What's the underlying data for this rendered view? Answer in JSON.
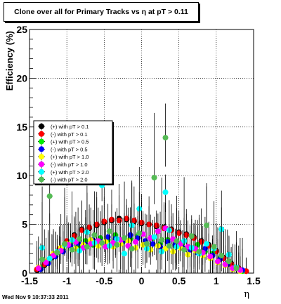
{
  "chart_data": {
    "type": "scatter",
    "title": "Clone  over all for Primary Tracks vs    η at pT > 0.11",
    "xlabel": "η",
    "ylabel": "Efficiency (%)",
    "xlim": [
      -1.5,
      1.5
    ],
    "ylim": [
      0,
      25
    ],
    "xticks": [
      -1.5,
      -1,
      -0.5,
      0,
      0.5,
      1,
      1.5
    ],
    "yticks": [
      0,
      5,
      10,
      15,
      20,
      25
    ],
    "grid": true,
    "legend_position": "left",
    "footer": "Wed Nov  9 10:37:33 2011",
    "series": [
      {
        "name": "(+) with pT > 0.1",
        "color": "#000000",
        "x": [
          -1.4,
          -1.3,
          -1.2,
          -1.1,
          -1.0,
          -0.9,
          -0.8,
          -0.7,
          -0.6,
          -0.5,
          -0.4,
          -0.3,
          -0.2,
          -0.1,
          0.0,
          0.1,
          0.2,
          0.3,
          0.4,
          0.5,
          0.6,
          0.7,
          0.8,
          0.9,
          1.0,
          1.1,
          1.2,
          1.3,
          1.4
        ],
        "y": [
          0.3,
          0.8,
          1.6,
          2.4,
          3.2,
          3.9,
          4.5,
          4.6,
          4.9,
          5.2,
          5.4,
          5.6,
          5.5,
          5.3,
          5.1,
          5.0,
          4.8,
          4.7,
          4.5,
          4.2,
          4.0,
          3.7,
          3.3,
          2.9,
          2.3,
          1.6,
          1.0,
          0.5,
          0.2
        ]
      },
      {
        "name": "(-) with pT > 0.1",
        "color": "#ff0000",
        "x": [
          -1.4,
          -1.3,
          -1.2,
          -1.1,
          -1.0,
          -0.9,
          -0.8,
          -0.7,
          -0.6,
          -0.5,
          -0.4,
          -0.3,
          -0.2,
          -0.1,
          0.0,
          0.1,
          0.2,
          0.3,
          0.4,
          0.5,
          0.6,
          0.7,
          0.8,
          0.9,
          1.0,
          1.1,
          1.2,
          1.3,
          1.4
        ],
        "y": [
          0.4,
          0.9,
          1.7,
          2.5,
          3.3,
          3.8,
          4.4,
          4.7,
          5.0,
          5.3,
          5.5,
          5.4,
          5.6,
          5.4,
          5.2,
          5.0,
          4.9,
          4.6,
          4.4,
          4.1,
          3.9,
          3.6,
          3.2,
          2.8,
          2.2,
          1.5,
          0.9,
          0.5,
          0.2
        ]
      },
      {
        "name": "(+) with pT > 0.5",
        "color": "#00ee00",
        "x": [
          -1.35,
          -1.25,
          -1.15,
          -1.05,
          -0.95,
          -0.85,
          -0.75,
          -0.65,
          -0.55,
          -0.45,
          -0.35,
          -0.25,
          -0.15,
          -0.05,
          0.05,
          0.15,
          0.25,
          0.35,
          0.45,
          0.55,
          0.65,
          0.75,
          0.85,
          0.95,
          1.05,
          1.15,
          1.25,
          1.35
        ],
        "y": [
          0.5,
          1.1,
          1.8,
          2.4,
          3.0,
          2.7,
          3.3,
          2.9,
          3.6,
          3.4,
          3.9,
          3.2,
          3.5,
          3.8,
          3.1,
          3.6,
          3.0,
          3.4,
          2.8,
          3.1,
          2.6,
          2.9,
          2.2,
          2.0,
          1.5,
          1.0,
          0.6,
          0.2
        ]
      },
      {
        "name": "(-) with pT > 0.5",
        "color": "#0000ff",
        "x": [
          -1.35,
          -1.25,
          -1.15,
          -1.05,
          -0.95,
          -0.85,
          -0.75,
          -0.65,
          -0.55,
          -0.45,
          -0.35,
          -0.25,
          -0.15,
          -0.05,
          0.05,
          0.15,
          0.25,
          0.35,
          0.45,
          0.55,
          0.65,
          0.75,
          0.85,
          0.95,
          1.05,
          1.15,
          1.25,
          1.35
        ],
        "y": [
          0.4,
          1.0,
          1.7,
          2.2,
          2.8,
          3.1,
          2.9,
          3.4,
          3.2,
          3.7,
          3.5,
          3.3,
          3.9,
          3.6,
          3.3,
          3.0,
          2.7,
          3.2,
          2.9,
          2.6,
          2.4,
          2.1,
          2.5,
          1.8,
          1.4,
          0.9,
          0.5,
          0.3
        ]
      },
      {
        "name": "(+) with pT > 1.0",
        "color": "#ffff00",
        "x": [
          -1.38,
          -1.28,
          -1.18,
          -1.08,
          -0.98,
          -0.88,
          -0.78,
          -0.68,
          -0.58,
          -0.48,
          -0.38,
          -0.28,
          -0.18,
          -0.08,
          0.02,
          0.12,
          0.22,
          0.32,
          0.42,
          0.52,
          0.62,
          0.72,
          0.82,
          0.92,
          1.02,
          1.12,
          1.22,
          1.32
        ],
        "y": [
          0.6,
          1.2,
          2.0,
          2.6,
          3.0,
          2.5,
          2.9,
          3.4,
          2.8,
          3.2,
          2.7,
          3.0,
          3.3,
          2.6,
          2.9,
          2.4,
          2.8,
          2.5,
          2.2,
          2.6,
          1.9,
          2.3,
          1.8,
          1.5,
          1.1,
          0.8,
          0.4,
          0.2
        ]
      },
      {
        "name": "(-) with pT > 1.0",
        "color": "#ff00ff",
        "x": [
          -1.38,
          -1.28,
          -1.18,
          -1.08,
          -0.98,
          -0.88,
          -0.78,
          -0.68,
          -0.58,
          -0.48,
          -0.38,
          -0.28,
          -0.18,
          -0.08,
          0.02,
          0.12,
          0.22,
          0.32,
          0.42,
          0.52,
          0.62,
          0.72,
          0.82,
          0.92,
          1.02,
          1.12,
          1.22,
          1.32
        ],
        "y": [
          0.5,
          1.1,
          1.8,
          2.3,
          2.9,
          3.2,
          2.6,
          3.0,
          3.3,
          2.7,
          3.1,
          3.4,
          2.8,
          3.2,
          4.0,
          3.6,
          4.3,
          4.6,
          3.5,
          3.0,
          2.7,
          2.5,
          2.1,
          1.7,
          1.2,
          0.9,
          0.5,
          0.3
        ]
      },
      {
        "name": "(+) with pT > 2.0",
        "color": "#00ffff",
        "x": [
          -1.33,
          -1.23,
          -1.13,
          -1.03,
          -0.93,
          -0.83,
          -0.73,
          -0.63,
          -0.53,
          -0.43,
          -0.33,
          -0.23,
          -0.13,
          -0.03,
          0.07,
          0.17,
          0.27,
          0.32,
          0.37,
          0.47,
          0.57,
          0.67,
          0.77,
          0.87,
          0.97,
          1.07,
          1.17,
          1.27
        ],
        "y": [
          2.6,
          1.5,
          2.2,
          2.9,
          3.4,
          2.3,
          4.2,
          3.1,
          9.0,
          2.8,
          3.5,
          2.0,
          4.9,
          6.6,
          2.5,
          3.7,
          2.2,
          8.3,
          4.4,
          2.7,
          3.3,
          2.6,
          2.0,
          3.0,
          2.5,
          4.5,
          1.9,
          0.6
        ]
      },
      {
        "name": "(-) with pT > 2.0",
        "color": "#55bb55",
        "x": [
          -1.33,
          -1.23,
          -1.13,
          -1.03,
          -0.93,
          -0.83,
          -0.73,
          -0.63,
          -0.53,
          -0.43,
          -0.33,
          -0.23,
          -0.13,
          -0.03,
          0.07,
          0.17,
          0.27,
          0.32,
          0.37,
          0.47,
          0.57,
          0.67,
          0.77,
          0.87,
          0.97,
          1.07,
          1.17,
          1.27
        ],
        "y": [
          1.4,
          7.9,
          2.1,
          3.0,
          2.4,
          3.5,
          2.7,
          3.9,
          3.1,
          4.3,
          2.9,
          3.6,
          2.5,
          4.1,
          3.0,
          9.8,
          3.4,
          13.9,
          2.8,
          3.3,
          2.4,
          3.8,
          2.2,
          4.9,
          2.7,
          1.8,
          1.2,
          0.5
        ]
      }
    ]
  }
}
